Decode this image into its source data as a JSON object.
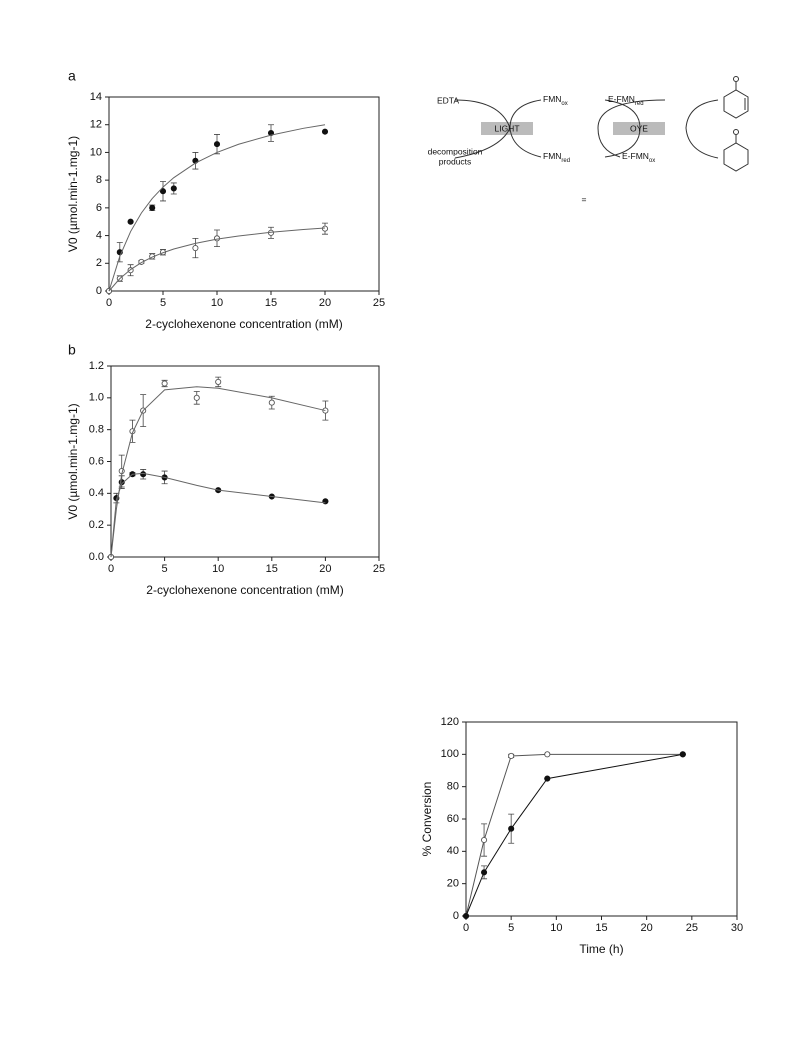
{
  "chart_data": [
    {
      "type": "scatter",
      "panel": "a",
      "xlabel": "2-cyclohexenone concentration (mM)",
      "ylabel": "V0 (µmol.min-1.mg-1)",
      "xlim": [
        0,
        25
      ],
      "xticks": [
        0,
        5,
        10,
        15,
        20,
        25
      ],
      "ylim": [
        0,
        14
      ],
      "yticks": [
        0,
        2,
        4,
        6,
        8,
        10,
        12,
        14
      ],
      "series": [
        {
          "color": "#111111",
          "marker": "filled",
          "x": [
            0,
            1,
            2,
            4,
            5,
            6,
            8,
            10,
            15,
            20
          ],
          "values": [
            0,
            2.8,
            5,
            6,
            7.2,
            7.4,
            9.4,
            10.6,
            11.4,
            11.5
          ],
          "errors": [
            0,
            0.7,
            0,
            0.2,
            0.7,
            0.4,
            0.6,
            0.7,
            0.6,
            0
          ]
        },
        {
          "color": "#555555",
          "marker": "open",
          "x": [
            0,
            1,
            2,
            3,
            4,
            5,
            8,
            10,
            15,
            20
          ],
          "values": [
            0,
            0.9,
            1.5,
            2.1,
            2.5,
            2.8,
            3.1,
            3.8,
            4.2,
            4.5
          ],
          "errors": [
            0,
            0.2,
            0.4,
            0.1,
            0.2,
            0.2,
            0.7,
            0.6,
            0.4,
            0.4
          ]
        },
        {
          "color": "#666666",
          "marker": "none",
          "x": [
            0,
            1,
            2,
            3,
            4,
            5,
            6,
            8,
            10,
            12,
            15,
            18,
            20
          ],
          "values": [
            0,
            2.5,
            4.29,
            5.63,
            6.67,
            7.5,
            8.18,
            9.23,
            10.0,
            10.59,
            11.25,
            11.74,
            12.0
          ]
        },
        {
          "color": "#666666",
          "marker": "none",
          "x": [
            0,
            1,
            2,
            3,
            4,
            5,
            6,
            8,
            10,
            12,
            15,
            18,
            20
          ],
          "values": [
            0,
            0.89,
            1.55,
            2.05,
            2.45,
            2.76,
            3.03,
            3.44,
            3.74,
            3.97,
            4.24,
            4.44,
            4.55
          ]
        }
      ]
    },
    {
      "type": "scatter",
      "panel": "b",
      "xlabel": "2-cyclohexenone concentration (mM)",
      "ylabel": "V0 (µmol.min-1.mg-1)",
      "xlim": [
        0,
        25
      ],
      "xticks": [
        0,
        5,
        10,
        15,
        20,
        25
      ],
      "ylim": [
        0,
        1.2
      ],
      "yticks": [
        {
          "value": 0,
          "label": "0.0"
        },
        0.2,
        0.4,
        0.6,
        0.8,
        {
          "value": 1,
          "label": "1.0"
        },
        1.2
      ],
      "series": [
        {
          "color": "#111111",
          "marker": "filled",
          "x": [
            0,
            0.5,
            1,
            2,
            3,
            5,
            10,
            15,
            20
          ],
          "values": [
            0,
            0.37,
            0.47,
            0.52,
            0.52,
            0.5,
            0.42,
            0.38,
            0.35
          ],
          "errors": [
            0,
            0.03,
            0.04,
            0.01,
            0.03,
            0.04,
            0,
            0,
            0
          ]
        },
        {
          "color": "#555555",
          "marker": "open",
          "x": [
            0,
            1,
            2,
            3,
            5,
            8,
            10,
            15,
            20
          ],
          "values": [
            0,
            0.54,
            0.79,
            0.92,
            1.09,
            1.0,
            1.1,
            0.97,
            0.92
          ],
          "errors": [
            0,
            0.1,
            0.07,
            0.1,
            0.02,
            0.04,
            0.03,
            0.04,
            0.06
          ]
        },
        {
          "color": "#666666",
          "marker": "none",
          "x": [
            0,
            0.5,
            1,
            2,
            3,
            5,
            8,
            10,
            15,
            20
          ],
          "values": [
            0,
            0.36,
            0.46,
            0.52,
            0.525,
            0.5,
            0.45,
            0.42,
            0.38,
            0.34
          ]
        },
        {
          "color": "#666666",
          "marker": "none",
          "x": [
            0,
            0.5,
            1,
            2,
            3,
            5,
            8,
            10,
            15,
            20
          ],
          "values": [
            0,
            0.3,
            0.52,
            0.78,
            0.92,
            1.05,
            1.07,
            1.06,
            1.0,
            0.92
          ]
        }
      ]
    },
    {
      "type": "line",
      "xlabel": "Time (h)",
      "ylabel": "% Conversion",
      "xlim": [
        0,
        30
      ],
      "xticks": [
        0,
        5,
        10,
        15,
        20,
        25,
        30
      ],
      "ylim": [
        0,
        120
      ],
      "yticks": [
        0,
        20,
        40,
        60,
        80,
        100,
        120
      ],
      "series": [
        {
          "color": "#555555",
          "marker": "open",
          "x": [
            0,
            2,
            5,
            9,
            24
          ],
          "values": [
            0,
            47,
            99,
            100,
            100
          ],
          "errors": [
            0,
            10,
            1,
            0,
            0
          ]
        },
        {
          "color": "#111111",
          "marker": "filled",
          "x": [
            0,
            2,
            5,
            9,
            24
          ],
          "values": [
            0,
            27,
            54,
            85,
            100
          ],
          "errors": [
            0,
            4,
            9,
            0,
            0
          ]
        }
      ]
    }
  ],
  "diagram": {
    "edta": "EDTA",
    "light": "LIGHT",
    "decomposition": [
      "decomposition",
      "products"
    ],
    "fmn_ox": {
      "base": "FMN",
      "sub": "ox"
    },
    "fmn_red": {
      "base": "FMN",
      "sub": "red"
    },
    "e_fmn_red": {
      "base": "E-FMN",
      "sub": "red"
    },
    "oye": "OYE",
    "e_fmn_ox": {
      "base": "E-FMN",
      "sub": "ox"
    }
  },
  "footnote": "="
}
